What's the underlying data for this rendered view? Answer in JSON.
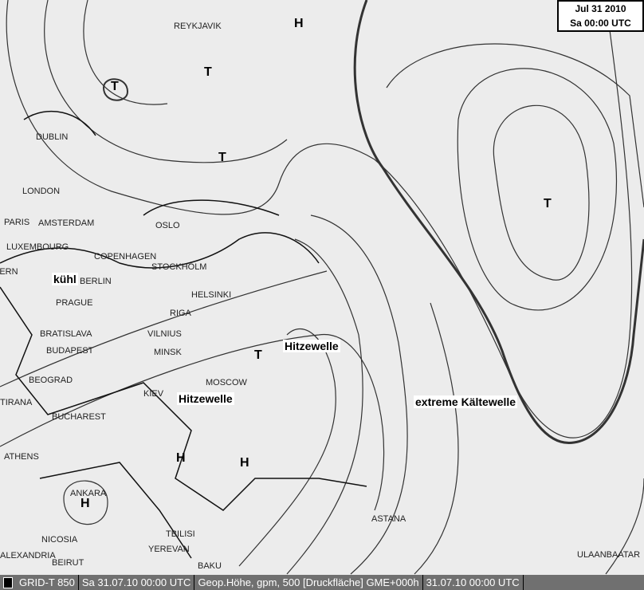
{
  "date_box": {
    "date": "Jul 31 2010",
    "time": "Sa 00:00 UTC"
  },
  "cities": [
    "REYKJAVIK",
    "DUBLIN",
    "LONDON",
    "PARIS",
    "AMSTERDAM",
    "LUXEMBOURG",
    "BERN",
    "BERLIN",
    "COPENHAGEN",
    "OSLO",
    "STOCKHOLM",
    "HELSINKI",
    "RIGA",
    "VILNIUS",
    "MINSK",
    "PRAGUE",
    "BRATISLAVA",
    "BUDAPEST",
    "BEOGRAD",
    "TIRANA",
    "BUCHAREST",
    "KIEV",
    "MOSCOW",
    "ATHENS",
    "ANKARA",
    "NICOSIA",
    "ALEXANDRIA",
    "BEIRUT",
    "TBILISI",
    "YEREVAN",
    "BAKU",
    "ASTANA",
    "ULAANBAATAR"
  ],
  "annotations": [
    "kühl",
    "Hitzewelle",
    "Hitzewelle",
    "extreme Kältewelle"
  ],
  "symbols": {
    "low": "T",
    "high": "H"
  },
  "status_bar": {
    "layer": "GRID-T 850",
    "valid": "Sa 31.07.10 00:00 UTC",
    "field": "Geop.Höhe, gpm, 500 [Druckfläche] GME+000h",
    "run": "31.07.10 00:00 UTC"
  }
}
